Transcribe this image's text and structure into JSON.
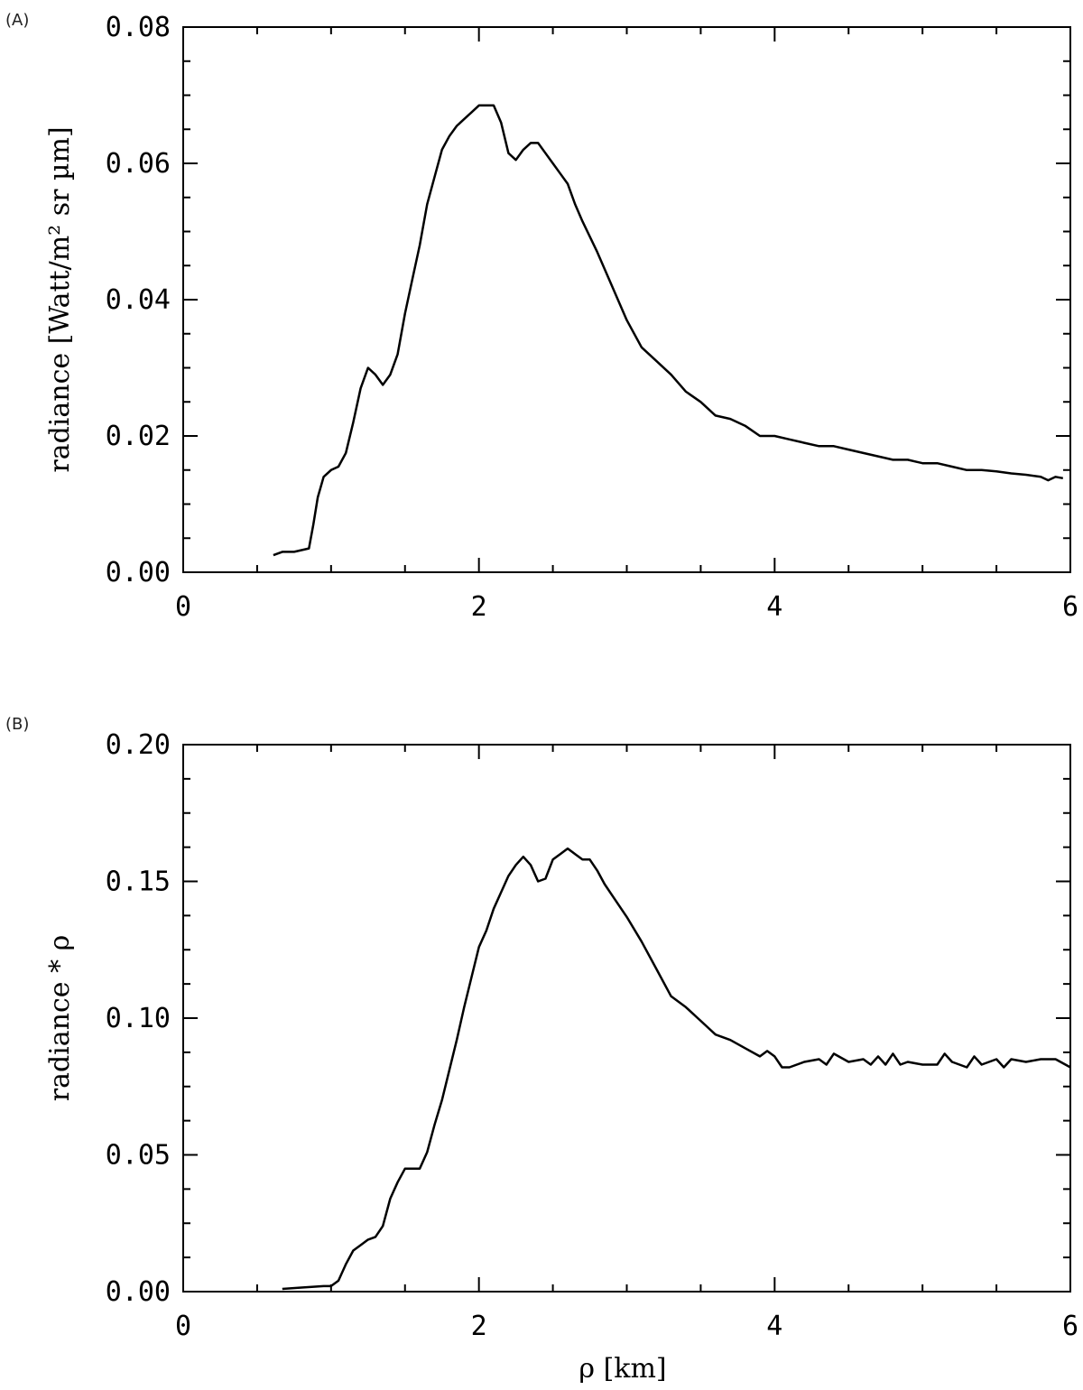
{
  "chart_data": [
    {
      "type": "line",
      "panel_label": "(A)",
      "xlabel": "",
      "ylabel": "radiance [Watt/m² sr µm]",
      "xlim": [
        0,
        6
      ],
      "ylim": [
        0,
        0.08
      ],
      "xticks": [
        0,
        2,
        4,
        6
      ],
      "xtick_labels": [
        "0",
        "2",
        "4",
        "6"
      ],
      "yticks": [
        0,
        0.02,
        0.04,
        0.06,
        0.08
      ],
      "ytick_labels": [
        "0.00",
        "0.02",
        "0.04",
        "0.06",
        "0.08"
      ],
      "grid": false,
      "series": [
        {
          "color": "#000000",
          "x": [
            0.61,
            0.67,
            0.75,
            0.85,
            0.88,
            0.91,
            0.95,
            1.0,
            1.05,
            1.1,
            1.15,
            1.2,
            1.25,
            1.3,
            1.35,
            1.4,
            1.45,
            1.5,
            1.55,
            1.6,
            1.65,
            1.7,
            1.75,
            1.8,
            1.85,
            1.9,
            1.95,
            2.0,
            2.05,
            2.1,
            2.15,
            2.2,
            2.25,
            2.3,
            2.35,
            2.4,
            2.45,
            2.5,
            2.55,
            2.6,
            2.65,
            2.7,
            2.8,
            2.9,
            3.0,
            3.1,
            3.2,
            3.3,
            3.4,
            3.5,
            3.6,
            3.7,
            3.8,
            3.9,
            4.0,
            4.1,
            4.2,
            4.3,
            4.4,
            4.5,
            4.6,
            4.7,
            4.8,
            4.9,
            5.0,
            5.1,
            5.2,
            5.3,
            5.4,
            5.5,
            5.6,
            5.7,
            5.8,
            5.85,
            5.9,
            5.95
          ],
          "y": [
            0.0025,
            0.003,
            0.003,
            0.0035,
            0.007,
            0.011,
            0.014,
            0.015,
            0.0155,
            0.0175,
            0.022,
            0.027,
            0.03,
            0.029,
            0.0275,
            0.029,
            0.032,
            0.038,
            0.043,
            0.048,
            0.054,
            0.058,
            0.062,
            0.064,
            0.0655,
            0.0665,
            0.0675,
            0.0685,
            0.0685,
            0.0685,
            0.066,
            0.0615,
            0.0605,
            0.062,
            0.063,
            0.063,
            0.0615,
            0.06,
            0.0585,
            0.057,
            0.054,
            0.0515,
            0.047,
            0.042,
            0.037,
            0.033,
            0.031,
            0.029,
            0.0265,
            0.025,
            0.023,
            0.0225,
            0.0215,
            0.02,
            0.02,
            0.0195,
            0.019,
            0.0185,
            0.0185,
            0.018,
            0.0175,
            0.017,
            0.0165,
            0.0165,
            0.016,
            0.016,
            0.0155,
            0.015,
            0.015,
            0.0148,
            0.0145,
            0.0143,
            0.014,
            0.0135,
            0.014,
            0.0138
          ]
        }
      ]
    },
    {
      "type": "line",
      "panel_label": "(B)",
      "xlabel": "ρ [km]",
      "ylabel": "radiance * ρ",
      "xlim": [
        0,
        6
      ],
      "ylim": [
        0,
        0.2
      ],
      "xticks": [
        0,
        2,
        4,
        6
      ],
      "xtick_labels": [
        "0",
        "2",
        "4",
        "6"
      ],
      "yticks": [
        0,
        0.05,
        0.1,
        0.15,
        0.2
      ],
      "ytick_labels": [
        "0.00",
        "0.05",
        "0.10",
        "0.15",
        "0.20"
      ],
      "grid": false,
      "series": [
        {
          "color": "#000000",
          "x": [
            0.67,
            0.8,
            0.95,
            1.0,
            1.05,
            1.1,
            1.15,
            1.2,
            1.25,
            1.3,
            1.35,
            1.4,
            1.45,
            1.5,
            1.55,
            1.6,
            1.65,
            1.7,
            1.75,
            1.8,
            1.85,
            1.9,
            1.95,
            2.0,
            2.05,
            2.1,
            2.15,
            2.2,
            2.25,
            2.3,
            2.35,
            2.4,
            2.45,
            2.5,
            2.55,
            2.6,
            2.65,
            2.7,
            2.75,
            2.8,
            2.85,
            2.9,
            3.0,
            3.1,
            3.2,
            3.3,
            3.4,
            3.5,
            3.6,
            3.7,
            3.8,
            3.9,
            3.95,
            4.0,
            4.05,
            4.1,
            4.2,
            4.3,
            4.35,
            4.4,
            4.5,
            4.6,
            4.65,
            4.7,
            4.75,
            4.8,
            4.85,
            4.9,
            5.0,
            5.1,
            5.15,
            5.2,
            5.3,
            5.35,
            5.4,
            5.5,
            5.55,
            5.6,
            5.7,
            5.8,
            5.9,
            6.0
          ],
          "y": [
            0.001,
            0.0015,
            0.002,
            0.002,
            0.004,
            0.01,
            0.015,
            0.017,
            0.019,
            0.02,
            0.024,
            0.034,
            0.04,
            0.045,
            0.045,
            0.045,
            0.051,
            0.061,
            0.07,
            0.081,
            0.092,
            0.104,
            0.115,
            0.126,
            0.132,
            0.14,
            0.146,
            0.152,
            0.156,
            0.159,
            0.156,
            0.15,
            0.151,
            0.158,
            0.16,
            0.162,
            0.16,
            0.158,
            0.158,
            0.154,
            0.149,
            0.145,
            0.137,
            0.128,
            0.118,
            0.108,
            0.104,
            0.099,
            0.094,
            0.092,
            0.089,
            0.086,
            0.088,
            0.086,
            0.082,
            0.082,
            0.084,
            0.085,
            0.083,
            0.087,
            0.084,
            0.085,
            0.083,
            0.086,
            0.083,
            0.087,
            0.083,
            0.084,
            0.083,
            0.083,
            0.087,
            0.084,
            0.082,
            0.086,
            0.083,
            0.085,
            0.082,
            0.085,
            0.084,
            0.085,
            0.085,
            0.082
          ]
        }
      ]
    }
  ]
}
